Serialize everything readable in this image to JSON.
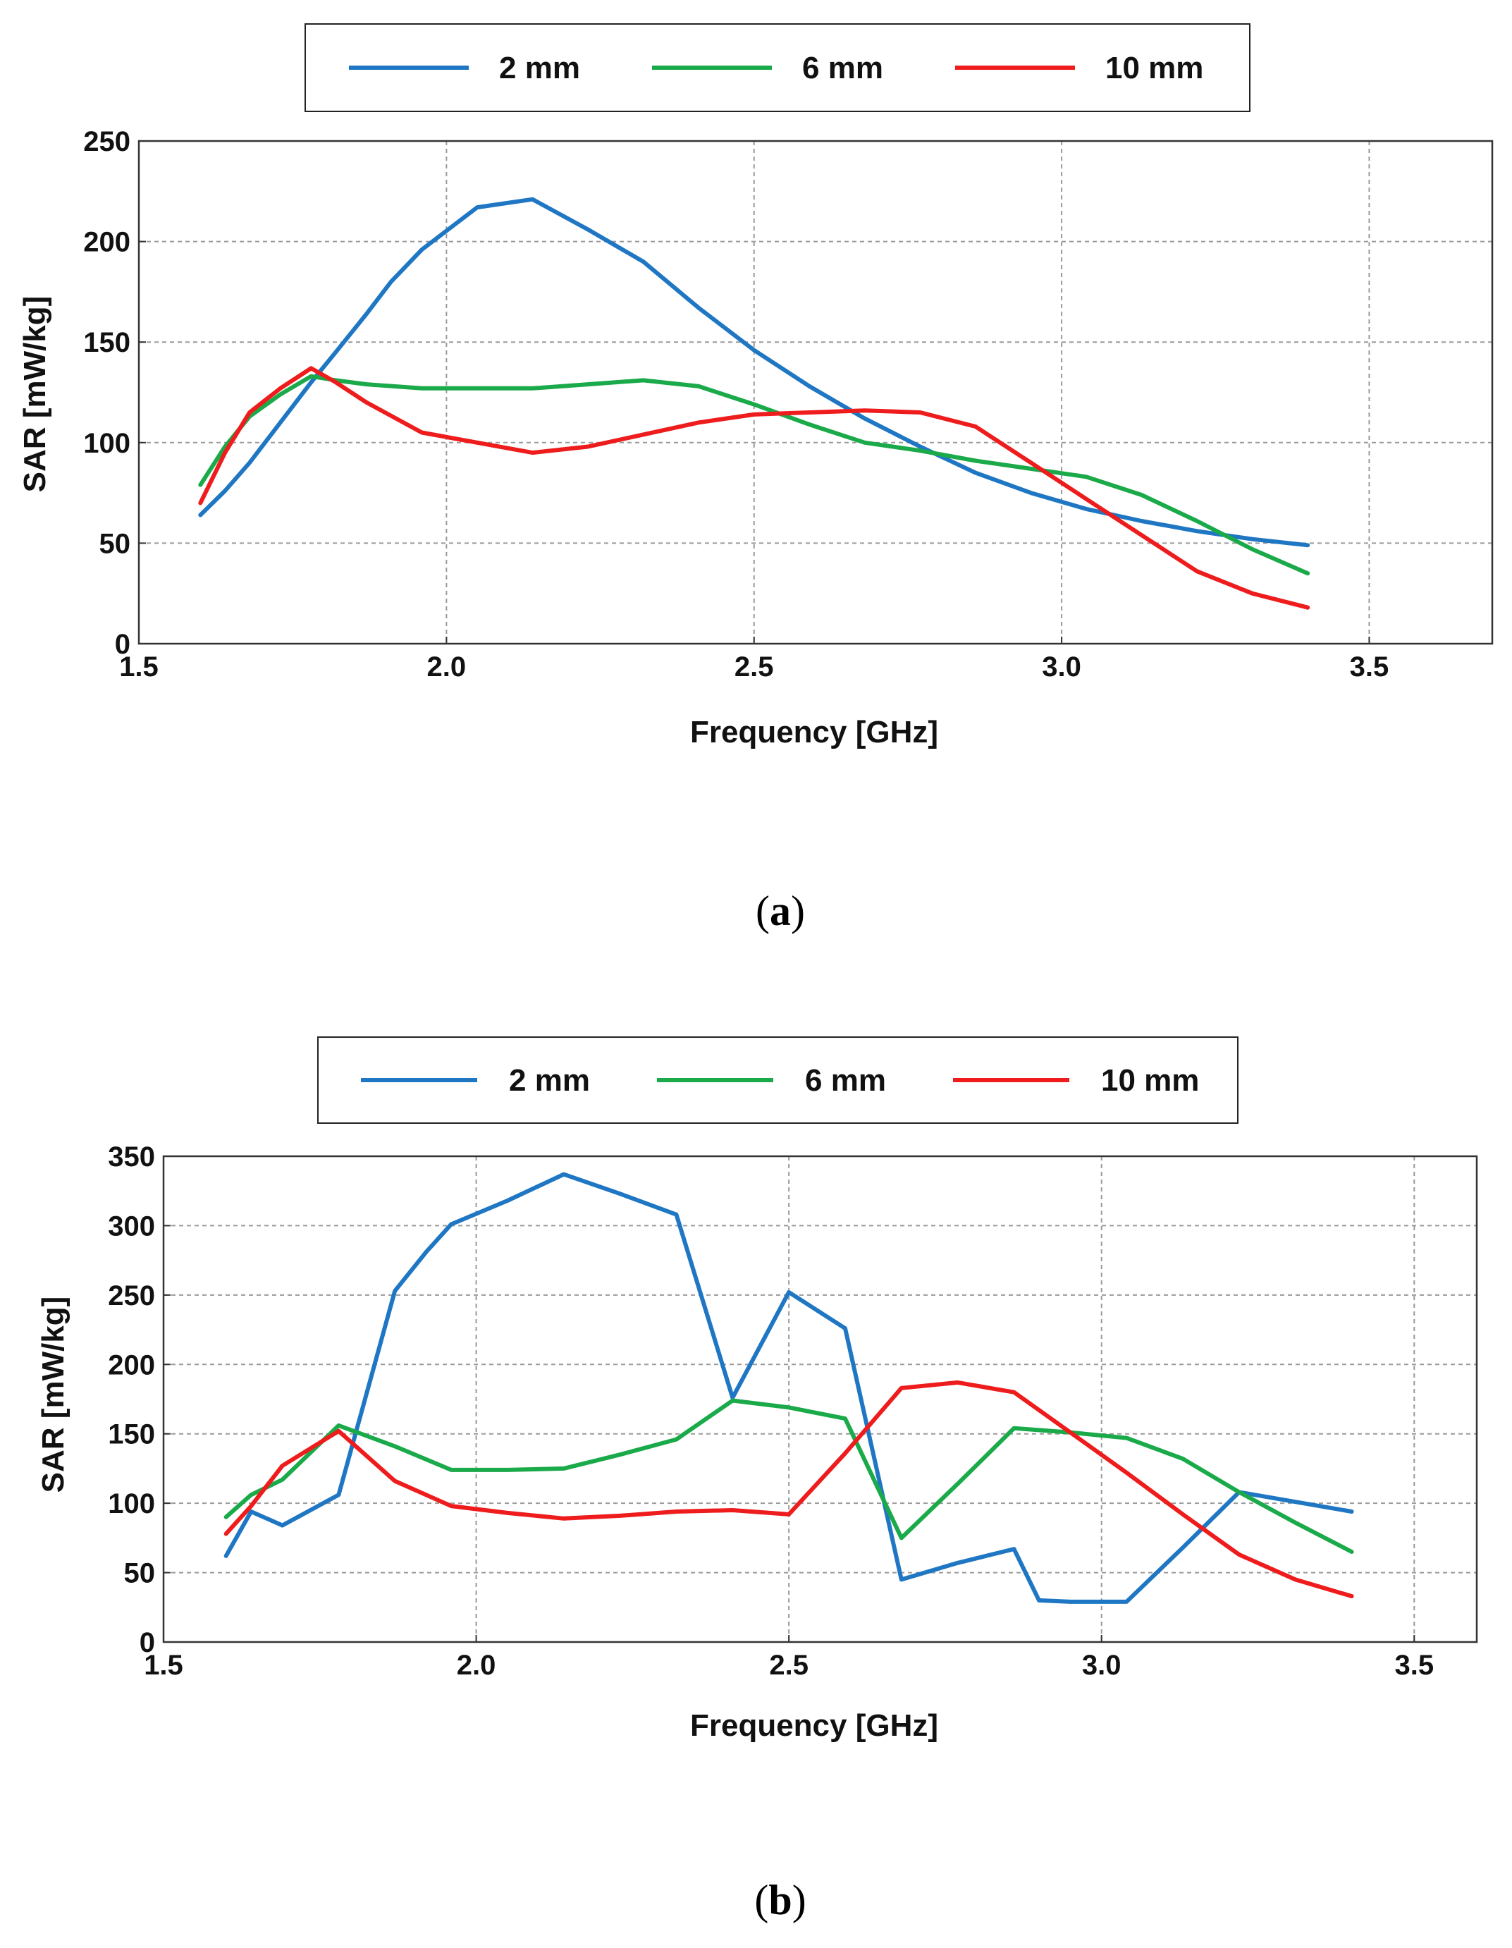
{
  "chart_data": [
    {
      "type": "line",
      "panel_label": "a",
      "title": "",
      "xlabel": "Frequency [GHz]",
      "ylabel": "SAR [mW/kg]",
      "xlim": [
        1.5,
        3.7
      ],
      "ylim": [
        0,
        250
      ],
      "xticks": [
        "1.5",
        "2.0",
        "2.5",
        "3.0",
        "3.5"
      ],
      "xtick_values": [
        1.5,
        2.0,
        2.5,
        3.0,
        3.5
      ],
      "yticks": [
        "0",
        "50",
        "100",
        "150",
        "200",
        "250"
      ],
      "ytick_values": [
        0,
        50,
        100,
        150,
        200,
        250
      ],
      "grid": true,
      "legend_position": "top-center",
      "series": [
        {
          "name": "2 mm",
          "color": "#1f77c4",
          "x": [
            1.6,
            1.64,
            1.68,
            1.73,
            1.78,
            1.82,
            1.87,
            1.91,
            1.96,
            2.05,
            2.14,
            2.23,
            2.32,
            2.41,
            2.5,
            2.59,
            2.68,
            2.77,
            2.86,
            2.95,
            3.04,
            3.13,
            3.22,
            3.31,
            3.4
          ],
          "y": [
            64,
            76,
            90,
            110,
            130,
            145,
            164,
            180,
            196,
            217,
            221,
            206,
            190,
            167,
            146,
            128,
            112,
            98,
            85,
            75,
            67,
            61,
            56,
            52,
            49
          ]
        },
        {
          "name": "6 mm",
          "color": "#1aaa4a",
          "x": [
            1.6,
            1.64,
            1.68,
            1.73,
            1.78,
            1.82,
            1.87,
            1.96,
            2.05,
            2.14,
            2.23,
            2.32,
            2.41,
            2.5,
            2.59,
            2.68,
            2.77,
            2.86,
            2.95,
            3.04,
            3.13,
            3.22,
            3.31,
            3.4
          ],
          "y": [
            79,
            98,
            113,
            124,
            133,
            131,
            129,
            127,
            127,
            127,
            129,
            131,
            128,
            119,
            109,
            100,
            96,
            91,
            87,
            83,
            74,
            61,
            47,
            35
          ]
        },
        {
          "name": "10 mm",
          "color": "#ee1c1c",
          "x": [
            1.6,
            1.64,
            1.68,
            1.73,
            1.78,
            1.82,
            1.87,
            1.96,
            2.05,
            2.14,
            2.23,
            2.32,
            2.41,
            2.5,
            2.59,
            2.68,
            2.77,
            2.86,
            2.95,
            3.04,
            3.13,
            3.22,
            3.31,
            3.4
          ],
          "y": [
            70,
            95,
            115,
            127,
            137,
            130,
            120,
            105,
            100,
            95,
            98,
            104,
            110,
            114,
            115,
            116,
            115,
            108,
            90,
            72,
            54,
            36,
            25,
            18
          ]
        }
      ]
    },
    {
      "type": "line",
      "panel_label": "b",
      "title": "",
      "xlabel": "Frequency [GHz]",
      "ylabel": "SAR [mW/kg]",
      "xlim": [
        1.5,
        3.6
      ],
      "ylim": [
        0,
        350
      ],
      "xticks": [
        "1.5",
        "2.0",
        "2.5",
        "3.0",
        "3.5"
      ],
      "xtick_values": [
        1.5,
        2.0,
        2.5,
        3.0,
        3.5
      ],
      "yticks": [
        "0",
        "50",
        "100",
        "150",
        "200",
        "250",
        "300",
        "350"
      ],
      "ytick_values": [
        0,
        50,
        100,
        150,
        200,
        250,
        300,
        350
      ],
      "grid": true,
      "legend_position": "top-center",
      "series": [
        {
          "name": "2 mm",
          "color": "#1f77c4",
          "x": [
            1.6,
            1.64,
            1.69,
            1.78,
            1.87,
            1.92,
            1.96,
            2.05,
            2.14,
            2.23,
            2.32,
            2.41,
            2.5,
            2.59,
            2.68,
            2.77,
            2.86,
            2.9,
            2.95,
            3.04,
            3.13,
            3.22,
            3.31,
            3.4
          ],
          "y": [
            62,
            94,
            84,
            106,
            253,
            281,
            301,
            318,
            337,
            323,
            308,
            176,
            252,
            226,
            45,
            57,
            67,
            30,
            29,
            29,
            68,
            108,
            101,
            94
          ]
        },
        {
          "name": "6 mm",
          "color": "#1aaa4a",
          "x": [
            1.6,
            1.64,
            1.69,
            1.78,
            1.87,
            1.96,
            2.05,
            2.14,
            2.23,
            2.32,
            2.41,
            2.5,
            2.59,
            2.68,
            2.77,
            2.86,
            2.95,
            3.04,
            3.13,
            3.22,
            3.31,
            3.4
          ],
          "y": [
            90,
            106,
            117,
            156,
            141,
            124,
            124,
            125,
            135,
            146,
            174,
            169,
            161,
            75,
            114,
            154,
            151,
            147,
            132,
            108,
            86,
            65
          ]
        },
        {
          "name": "10 mm",
          "color": "#ee1c1c",
          "x": [
            1.6,
            1.64,
            1.69,
            1.78,
            1.87,
            1.96,
            2.05,
            2.14,
            2.23,
            2.32,
            2.41,
            2.5,
            2.59,
            2.68,
            2.77,
            2.86,
            2.95,
            3.04,
            3.13,
            3.22,
            3.31,
            3.4
          ],
          "y": [
            78,
            98,
            127,
            152,
            116,
            98,
            93,
            89,
            91,
            94,
            95,
            92,
            136,
            183,
            187,
            180,
            151,
            122,
            92,
            63,
            45,
            33
          ]
        }
      ]
    }
  ],
  "captions": {
    "a": "a",
    "b": "b"
  }
}
